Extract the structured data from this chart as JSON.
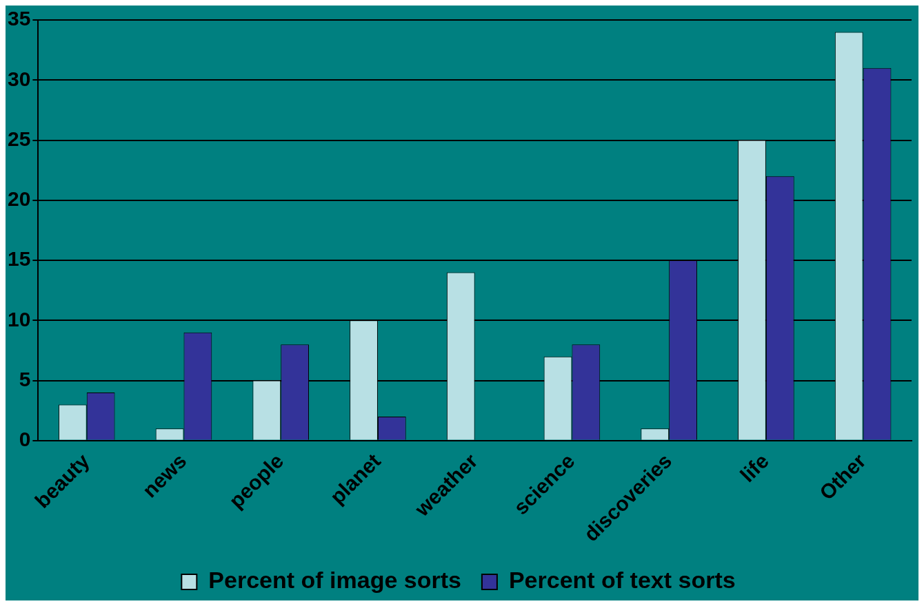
{
  "chart_data": {
    "type": "bar",
    "categories": [
      "beauty",
      "news",
      "people",
      "planet",
      "weather",
      "science",
      "discoveries",
      "life",
      "Other"
    ],
    "series": [
      {
        "name": "Percent of image sorts",
        "color": "#b8e0e4",
        "values": [
          3,
          1,
          5,
          10,
          14,
          7,
          1,
          25,
          34
        ]
      },
      {
        "name": "Percent of text sorts",
        "color": "#333399",
        "values": [
          4,
          9,
          8,
          2,
          0,
          8,
          15,
          22,
          31
        ]
      }
    ],
    "ylim": [
      0,
      35
    ],
    "yticks": [
      0,
      5,
      10,
      15,
      20,
      25,
      30,
      35
    ],
    "grid": "y",
    "legend": "bottom"
  }
}
